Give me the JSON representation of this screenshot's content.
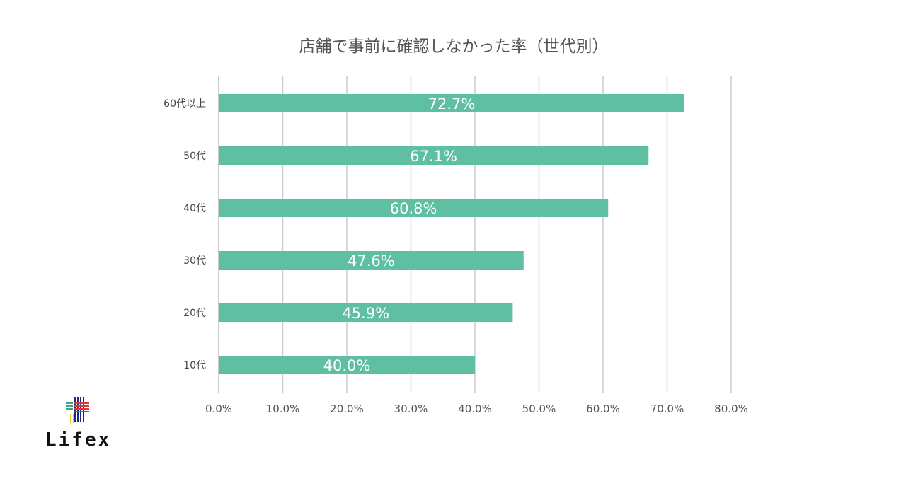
{
  "chart_data": {
    "type": "bar",
    "orientation": "horizontal",
    "title": "店舗で事前に確認しなかった率（世代別）",
    "categories": [
      "60代以上",
      "50代",
      "40代",
      "30代",
      "20代",
      "10代"
    ],
    "values": [
      72.7,
      67.1,
      60.8,
      47.6,
      45.9,
      40.0
    ],
    "data_labels": [
      "72.7%",
      "67.1%",
      "60.8%",
      "47.6%",
      "45.9%",
      "40.0%"
    ],
    "x_ticks": [
      "0.0%",
      "10.0%",
      "20.0%",
      "30.0%",
      "40.0%",
      "50.0%",
      "60.0%",
      "70.0%",
      "80.0%"
    ],
    "xlim": [
      0,
      80
    ],
    "grid": true,
    "legend": "none",
    "bar_color": "#5fbfa2"
  },
  "logo": {
    "text": "Lifex"
  }
}
